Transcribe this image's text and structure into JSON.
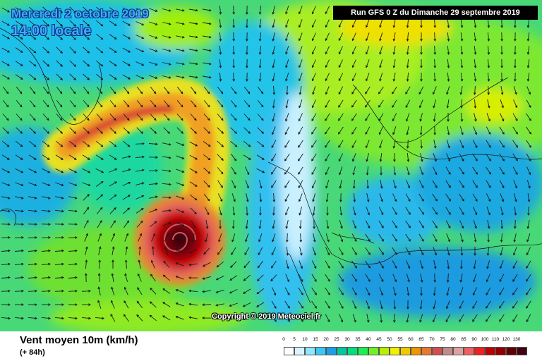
{
  "header": {
    "date_label": "Mercredi 2 octobre 2019",
    "time_label": "14:00 locale",
    "run_label": "Run GFS 0 Z du Dimanche 29 septembre 2019"
  },
  "copyright": "Copyright © 2019 Meteociel.fr",
  "footer": {
    "title": "Vent moyen 10m (km/h)",
    "lead_time": "(+ 84h)"
  },
  "legend": {
    "labels": [
      "0",
      "5",
      "10",
      "15",
      "20",
      "25",
      "30",
      "35",
      "40",
      "45",
      "50",
      "55",
      "60",
      "65",
      "70",
      "75",
      "80",
      "85",
      "90",
      "100",
      "110",
      "120",
      "130"
    ],
    "colors": [
      "#ffffff",
      "#d8f4ff",
      "#8ee6ff",
      "#3cc8f5",
      "#1c9fe6",
      "#00c8a0",
      "#00e07a",
      "#1cf050",
      "#6ef02a",
      "#b4f000",
      "#f0f000",
      "#f0c800",
      "#f09600",
      "#e87830",
      "#d05050",
      "#c08c8c",
      "#e0a0a0",
      "#f06060",
      "#f02020",
      "#c00000",
      "#900000",
      "#600000",
      "#400010"
    ]
  },
  "map": {
    "features": [
      "cyclone-vortex",
      "cold-front-band",
      "wind-arrows",
      "coastlines"
    ]
  }
}
